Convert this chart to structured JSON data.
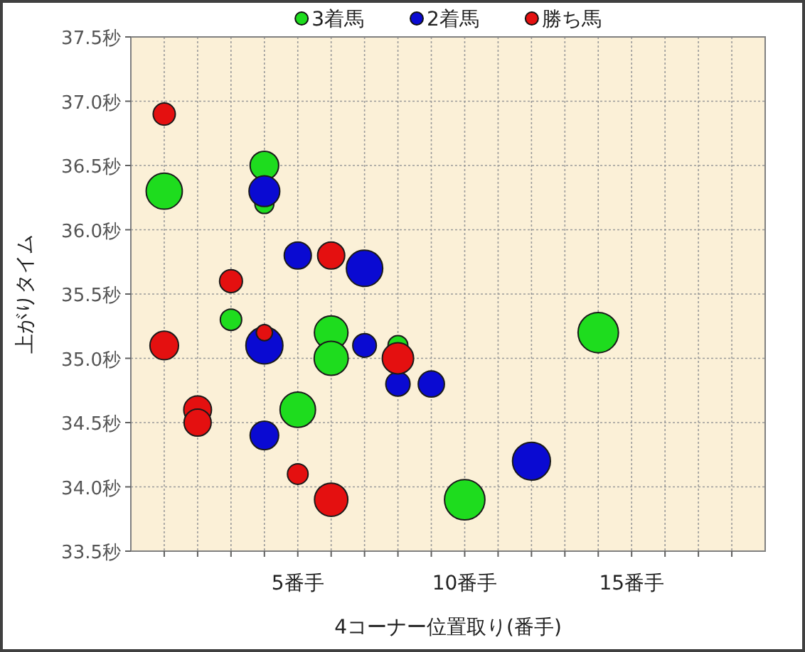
{
  "chart_data": {
    "type": "bubble",
    "xlabel": "4コーナー位置取り(番手)",
    "ylabel": "上がりタイム",
    "xlim": [
      0,
      19
    ],
    "ylim": [
      33.5,
      37.5
    ],
    "xticks": [
      {
        "value": 1,
        "label": null
      },
      {
        "value": 2,
        "label": null
      },
      {
        "value": 3,
        "label": null
      },
      {
        "value": 4,
        "label": null
      },
      {
        "value": 5,
        "label": "5番手"
      },
      {
        "value": 6,
        "label": null
      },
      {
        "value": 7,
        "label": null
      },
      {
        "value": 8,
        "label": null
      },
      {
        "value": 9,
        "label": null
      },
      {
        "value": 10,
        "label": "10番手"
      },
      {
        "value": 11,
        "label": null
      },
      {
        "value": 12,
        "label": null
      },
      {
        "value": 13,
        "label": null
      },
      {
        "value": 14,
        "label": null
      },
      {
        "value": 15,
        "label": "15番手"
      },
      {
        "value": 16,
        "label": null
      },
      {
        "value": 17,
        "label": null
      },
      {
        "value": 18,
        "label": null
      }
    ],
    "yticks": [
      {
        "value": 33.5,
        "label": "33.5秒"
      },
      {
        "value": 34.0,
        "label": "34.0秒"
      },
      {
        "value": 34.5,
        "label": "34.5秒"
      },
      {
        "value": 35.0,
        "label": "35.0秒"
      },
      {
        "value": 35.5,
        "label": "35.5秒"
      },
      {
        "value": 36.0,
        "label": "36.0秒"
      },
      {
        "value": 36.5,
        "label": "36.5秒"
      },
      {
        "value": 37.0,
        "label": "37.0秒"
      },
      {
        "value": 37.5,
        "label": "37.5秒"
      }
    ],
    "grid": true,
    "legend": "top",
    "series": [
      {
        "name": "3着馬",
        "color": "#1edc1e",
        "x": [
          1,
          4,
          4,
          3,
          6,
          6,
          8,
          5,
          14,
          10
        ],
        "values": [
          36.3,
          36.5,
          36.2,
          35.3,
          35.2,
          35.0,
          35.1,
          34.6,
          35.2,
          33.9
        ],
        "sizes": [
          0.8,
          0.5,
          0.22,
          0.28,
          0.69,
          0.71,
          0.24,
          0.77,
          1,
          1
        ]
      },
      {
        "name": "2着馬",
        "color": "#0a0ad2",
        "x": [
          4,
          5,
          7,
          4,
          7,
          8,
          9,
          4,
          12
        ],
        "values": [
          36.3,
          35.8,
          35.7,
          35.1,
          35.1,
          34.8,
          34.8,
          34.4,
          34.2
        ],
        "sizes": [
          0.58,
          0.45,
          0.81,
          0.84,
          0.34,
          0.36,
          0.42,
          0.5,
          0.88
        ]
      },
      {
        "name": "勝ち馬",
        "color": "#e41010",
        "x": [
          1,
          3,
          6,
          4,
          1,
          8,
          2,
          2,
          5,
          6
        ],
        "values": [
          36.9,
          35.6,
          35.8,
          35.2,
          35.1,
          35.0,
          34.6,
          34.5,
          34.1,
          33.9
        ],
        "sizes": [
          0.3,
          0.32,
          0.45,
          0.16,
          0.5,
          0.6,
          0.47,
          0.45,
          0.26,
          0.68
        ]
      }
    ]
  }
}
